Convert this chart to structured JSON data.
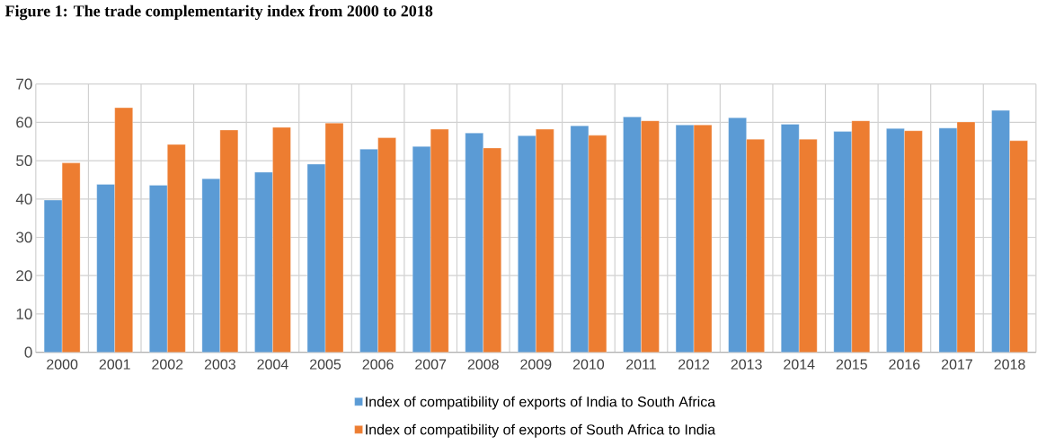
{
  "chart_data": {
    "type": "bar",
    "title": "Figure 1: The trade complementarity index from 2000 to 2018",
    "categories": [
      "2000",
      "2001",
      "2002",
      "2003",
      "2004",
      "2005",
      "2006",
      "2007",
      "2008",
      "2009",
      "2010",
      "2011",
      "2012",
      "2013",
      "2014",
      "2015",
      "2016",
      "2017",
      "2018"
    ],
    "series": [
      {
        "name": "Index of compatibility of exports of India to South Africa",
        "color": "#5b9bd5",
        "values": [
          39.7,
          43.8,
          43.6,
          45.3,
          47.0,
          49.1,
          53.0,
          53.7,
          57.2,
          56.5,
          59.1,
          61.4,
          59.3,
          61.2,
          59.5,
          57.6,
          58.4,
          58.5,
          63.1
        ]
      },
      {
        "name": "Index of compatibility of exports of South Africa to India",
        "color": "#ed7d31",
        "values": [
          49.4,
          63.8,
          54.2,
          58.0,
          58.7,
          59.8,
          56.0,
          58.2,
          53.3,
          58.2,
          56.6,
          60.4,
          59.3,
          55.6,
          55.6,
          60.4,
          57.8,
          60.1,
          55.2
        ]
      }
    ],
    "ylim": [
      0,
      70
    ],
    "yticks": [
      0,
      10,
      20,
      30,
      40,
      50,
      60,
      70
    ],
    "grid": true,
    "legend": "bottom"
  }
}
